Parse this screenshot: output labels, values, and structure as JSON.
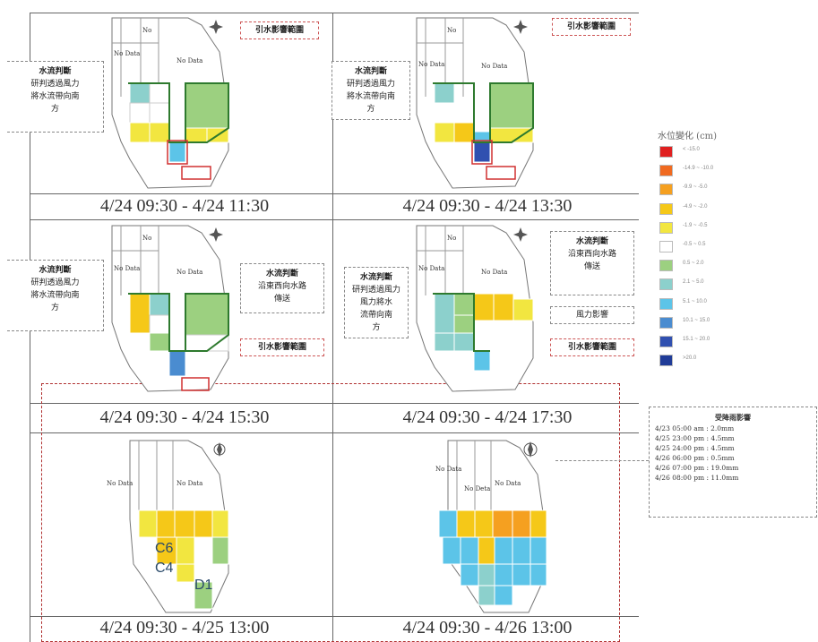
{
  "legend": {
    "title": "水位變化 (cm)",
    "items": [
      {
        "label": "< -15.0",
        "color": "#e02020"
      },
      {
        "label": "-14.9 ~ -10.0",
        "color": "#f06a20"
      },
      {
        "label": "-9.9 ~ -5.0",
        "color": "#f5a020"
      },
      {
        "label": "-4.9 ~ -2.0",
        "color": "#f5c818"
      },
      {
        "label": "-1.9 ~ -0.5",
        "color": "#f2e640"
      },
      {
        "label": "-0.5 ~ 0.5",
        "color": "#ffffff"
      },
      {
        "label": "0.5 ~ 2.0",
        "color": "#9cd080"
      },
      {
        "label": "2.1 ~ 5.0",
        "color": "#8cd0cc"
      },
      {
        "label": "5.1 ~ 10.0",
        "color": "#5cc4e8"
      },
      {
        "label": "10.1 ~ 15.0",
        "color": "#4a8cd0"
      },
      {
        "label": "15.1 ~ 20.0",
        "color": "#3050b0"
      },
      {
        "label": ">20.0",
        "color": "#203c98"
      }
    ]
  },
  "panels": [
    {
      "caption": "4/24 09:30 - 4/24 11:30"
    },
    {
      "caption": "4/24 09:30 - 4/24 13:30"
    },
    {
      "caption": "4/24 09:30 - 4/24 15:30"
    },
    {
      "caption": "4/24 09:30 - 4/24 17:30"
    },
    {
      "caption": "4/24 09:30 - 4/25 13:00"
    },
    {
      "caption": "4/24 09:30 - 4/26 13:00"
    }
  ],
  "callouts": {
    "water_flow_title": "水流判斷",
    "water_flow_body_1": "研判透過風力",
    "water_flow_body_2": "將水流帶向南",
    "water_flow_body_3": "方",
    "water_flow_body_4a": "風力將水",
    "water_flow_body_4b": "流帶向南",
    "east_west_body_1": "沿東西向水路",
    "east_west_body_2": "傳送",
    "intake_area": "引水影響範圍",
    "wind_effect": "風力影響"
  },
  "map_text": {
    "no": "No",
    "no_data": "No Data",
    "no_deta": "No Deta",
    "c6": "C6",
    "c4": "C4",
    "d1": "D1"
  },
  "rain": {
    "title": "受降雨影響",
    "lines": [
      "4/23 05:00 am : 2.0mm",
      "4/25 23:00 pm : 4.5mm",
      "4/25 24:00 pm : 4.5mm",
      "4/26 06:00 pm : 0.5mm",
      "4/26 07:00 pm : 19.0mm",
      "4/26 08:00 pm : 11.0mm"
    ]
  }
}
